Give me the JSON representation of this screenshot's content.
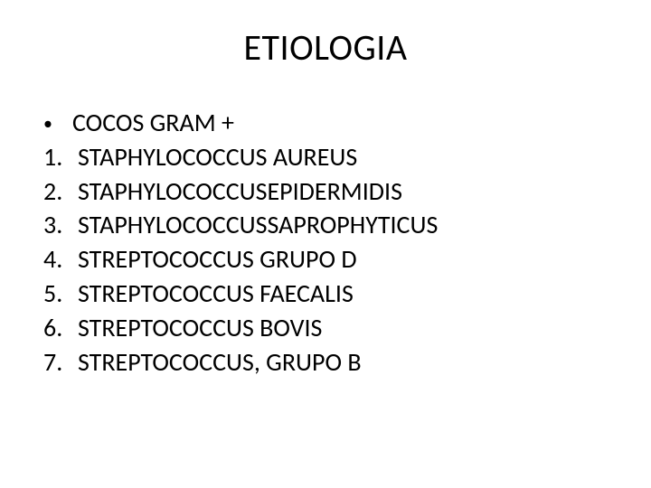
{
  "background_color": "#ffffff",
  "text_color": "#000000",
  "title": "ETIOLOGIA",
  "title_fontsize": 40,
  "body_fontsize": 28,
  "bullet": {
    "marker": "•",
    "text": "COCOS GRAM +"
  },
  "items": [
    {
      "n": "1.",
      "text": "STAPHYLOCOCCUS AUREUS"
    },
    {
      "n": "2.",
      "text": "STAPHYLOCOCCUSEPIDERMIDIS"
    },
    {
      "n": "3.",
      "text": "STAPHYLOCOCCUSSAPROPHYTICUS"
    },
    {
      "n": "4.",
      "text": "STREPTOCOCCUS GRUPO D"
    },
    {
      "n": "5.",
      "text": "STREPTOCOCCUS FAECALIS"
    },
    {
      "n": "6.",
      "text": "STREPTOCOCCUS BOVIS"
    },
    {
      "n": "7.",
      "text": "STREPTOCOCCUS, GRUPO B"
    }
  ]
}
